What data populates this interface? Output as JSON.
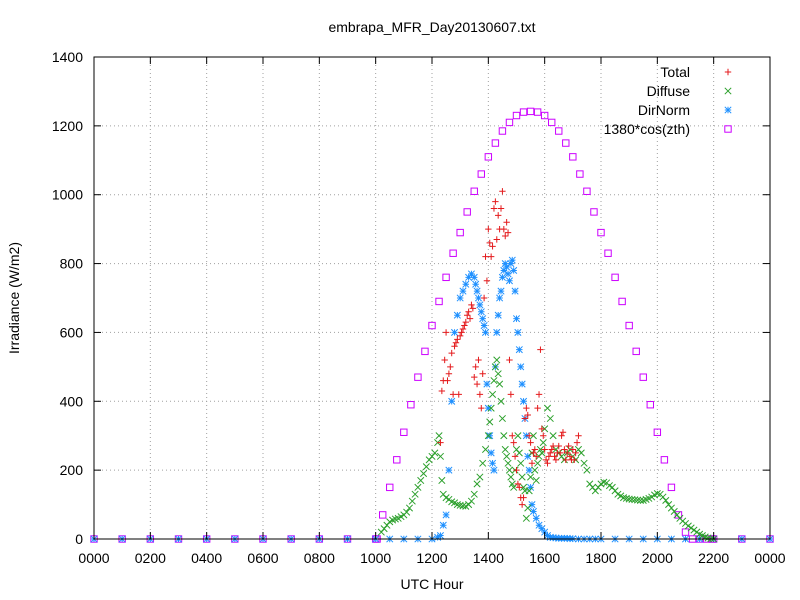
{
  "chart_data": {
    "type": "scatter",
    "title": "embrapa_MFR_Day20130607.txt",
    "xlabel": "UTC Hour",
    "ylabel": "Irradiance (W/m2)",
    "xlim": [
      0,
      24
    ],
    "ylim": [
      0,
      1400
    ],
    "x_ticks": [
      "0000",
      "0200",
      "0400",
      "0600",
      "0800",
      "1000",
      "1200",
      "1400",
      "1600",
      "1800",
      "2000",
      "2200",
      "0000"
    ],
    "y_ticks": [
      "0",
      "200",
      "400",
      "600",
      "800",
      "1000",
      "1200",
      "1400"
    ],
    "grid": true,
    "legend_position": "top-right",
    "series": [
      {
        "name": "Total",
        "marker": "plus",
        "color": "#e41a1c",
        "x": [
          12.3,
          12.35,
          12.4,
          12.45,
          12.5,
          12.55,
          12.6,
          12.65,
          12.7,
          12.75,
          12.8,
          12.85,
          12.9,
          12.95,
          13.0,
          13.05,
          13.1,
          13.15,
          13.2,
          13.25,
          13.3,
          13.35,
          13.4,
          13.45,
          13.5,
          13.55,
          13.6,
          13.65,
          13.7,
          13.75,
          13.8,
          13.85,
          13.9,
          13.95,
          14.0,
          14.05,
          14.1,
          14.15,
          14.2,
          14.25,
          14.3,
          14.35,
          14.4,
          14.45,
          14.5,
          14.55,
          14.6,
          14.65,
          14.7,
          14.75,
          14.8,
          14.85,
          14.9,
          14.95,
          15.0,
          15.05,
          15.1,
          15.15,
          15.2,
          15.25,
          15.3,
          15.35,
          15.4,
          15.45,
          15.5,
          15.55,
          15.6,
          15.65,
          15.7,
          15.75,
          15.8,
          15.85,
          15.9,
          15.95,
          16.0,
          16.05,
          16.1,
          16.15,
          16.2,
          16.25,
          16.3,
          16.35,
          16.4,
          16.45,
          16.5,
          16.55,
          16.6,
          16.65,
          16.7,
          16.75,
          16.8,
          16.85,
          16.9,
          16.95,
          17.0,
          17.05,
          17.1,
          17.15,
          17.2
        ],
        "y": [
          280,
          430,
          460,
          520,
          600,
          460,
          480,
          500,
          540,
          420,
          560,
          570,
          580,
          420,
          590,
          600,
          610,
          620,
          630,
          650,
          660,
          640,
          680,
          670,
          470,
          500,
          450,
          520,
          420,
          380,
          480,
          700,
          820,
          750,
          900,
          860,
          820,
          850,
          960,
          980,
          870,
          940,
          900,
          960,
          1010,
          900,
          880,
          920,
          890,
          520,
          420,
          300,
          280,
          240,
          200,
          160,
          150,
          120,
          100,
          120,
          350,
          380,
          360,
          300,
          280,
          220,
          250,
          260,
          240,
          380,
          420,
          550,
          320,
          300,
          260,
          230,
          220,
          240,
          250,
          260,
          270,
          240,
          230,
          250,
          270,
          250,
          300,
          310,
          260,
          230,
          250,
          270,
          240,
          230,
          260,
          230,
          250,
          280,
          300
        ]
      },
      {
        "name": "Diffuse",
        "marker": "x",
        "color": "#2ca02c",
        "x": [
          10.2,
          10.3,
          10.4,
          10.5,
          10.6,
          10.7,
          10.8,
          10.9,
          11.0,
          11.1,
          11.2,
          11.3,
          11.4,
          11.5,
          11.6,
          11.7,
          11.8,
          11.9,
          12.0,
          12.1,
          12.2,
          12.25,
          12.3,
          12.35,
          12.4,
          12.5,
          12.6,
          12.7,
          12.8,
          12.9,
          13.0,
          13.1,
          13.2,
          13.3,
          13.4,
          13.5,
          13.6,
          13.7,
          13.8,
          13.9,
          14.0,
          14.05,
          14.1,
          14.15,
          14.2,
          14.25,
          14.3,
          14.35,
          14.4,
          14.45,
          14.5,
          14.55,
          14.6,
          14.65,
          14.7,
          14.75,
          14.8,
          14.85,
          14.9,
          14.95,
          15.0,
          15.05,
          15.1,
          15.15,
          15.2,
          15.25,
          15.3,
          15.35,
          15.4,
          15.45,
          15.5,
          15.55,
          15.6,
          15.65,
          15.7,
          15.75,
          15.8,
          15.85,
          15.9,
          15.95,
          16.0,
          16.1,
          16.2,
          16.3,
          16.4,
          16.5,
          16.6,
          16.7,
          16.8,
          16.9,
          17.0,
          17.1,
          17.2,
          17.3,
          17.4,
          17.5,
          17.6,
          17.7,
          17.8,
          17.9,
          18.0,
          18.1,
          18.2,
          18.3,
          18.4,
          18.5,
          18.6,
          18.7,
          18.8,
          18.9,
          19.0,
          19.1,
          19.2,
          19.3,
          19.4,
          19.5,
          19.6,
          19.7,
          19.8,
          19.9,
          20.0,
          20.1,
          20.2,
          20.3,
          20.4,
          20.5,
          20.6,
          20.7,
          20.8,
          20.9,
          21.0,
          21.1,
          21.2,
          21.3,
          21.4,
          21.5,
          21.6,
          21.7,
          21.8,
          21.9,
          22.0
        ],
        "y": [
          20,
          30,
          40,
          50,
          55,
          58,
          60,
          65,
          70,
          78,
          90,
          110,
          130,
          150,
          170,
          190,
          210,
          230,
          240,
          250,
          280,
          300,
          240,
          170,
          130,
          120,
          115,
          108,
          105,
          100,
          98,
          96,
          95,
          100,
          110,
          130,
          160,
          180,
          220,
          260,
          300,
          340,
          380,
          420,
          460,
          500,
          520,
          480,
          450,
          400,
          350,
          300,
          260,
          240,
          220,
          200,
          180,
          160,
          150,
          200,
          260,
          300,
          250,
          220,
          180,
          150,
          140,
          60,
          90,
          140,
          180,
          250,
          300,
          200,
          170,
          220,
          240,
          260,
          250,
          280,
          320,
          380,
          350,
          300,
          260,
          250,
          240,
          230,
          250,
          260,
          240,
          230,
          260,
          250,
          220,
          200,
          160,
          150,
          140,
          150,
          160,
          165,
          163,
          155,
          150,
          140,
          130,
          125,
          120,
          118,
          116,
          115,
          114,
          113,
          112,
          112,
          115,
          118,
          122,
          128,
          132,
          130,
          122,
          112,
          100,
          90,
          80,
          70,
          60,
          52,
          45,
          38,
          32,
          26,
          20,
          14,
          10,
          6,
          3,
          1,
          0
        ]
      },
      {
        "name": "DirNorm",
        "marker": "star",
        "color": "#1e90ff",
        "x": [
          0.0,
          1.0,
          2.0,
          3.0,
          4.0,
          5.0,
          6.0,
          7.0,
          8.0,
          9.0,
          10.0,
          10.5,
          11.0,
          11.5,
          12.0,
          12.2,
          12.3,
          12.4,
          12.5,
          12.6,
          12.7,
          12.8,
          12.9,
          13.0,
          13.1,
          13.2,
          13.3,
          13.4,
          13.5,
          13.55,
          13.6,
          13.65,
          13.7,
          13.75,
          13.8,
          13.85,
          13.9,
          13.95,
          14.0,
          14.05,
          14.1,
          14.15,
          14.2,
          14.25,
          14.3,
          14.35,
          14.4,
          14.45,
          14.5,
          14.55,
          14.6,
          14.65,
          14.7,
          14.75,
          14.8,
          14.85,
          14.9,
          14.95,
          15.0,
          15.05,
          15.1,
          15.15,
          15.2,
          15.25,
          15.3,
          15.35,
          15.4,
          15.45,
          15.5,
          15.55,
          15.6,
          15.7,
          15.8,
          15.9,
          16.0,
          16.1,
          16.2,
          16.3,
          16.4,
          16.5,
          16.6,
          16.7,
          16.8,
          16.9,
          17.0,
          17.2,
          17.4,
          17.6,
          17.8,
          18.0,
          18.5,
          19.0,
          19.5,
          20.0,
          20.5,
          21.0,
          21.5,
          22.0,
          23.0,
          24.0
        ],
        "y": [
          0,
          0,
          0,
          0,
          0,
          0,
          0,
          0,
          0,
          0,
          0,
          0,
          0,
          0,
          0,
          5,
          10,
          40,
          70,
          200,
          400,
          600,
          650,
          700,
          720,
          740,
          760,
          770,
          760,
          740,
          720,
          700,
          680,
          660,
          640,
          620,
          600,
          450,
          380,
          300,
          250,
          220,
          200,
          500,
          600,
          650,
          700,
          720,
          760,
          780,
          800,
          790,
          770,
          750,
          800,
          810,
          780,
          720,
          640,
          600,
          550,
          500,
          450,
          400,
          350,
          300,
          240,
          200,
          150,
          100,
          80,
          60,
          40,
          30,
          20,
          10,
          5,
          4,
          3,
          2,
          2,
          2,
          2,
          1,
          1,
          0,
          0,
          0,
          0,
          0,
          0,
          0,
          0,
          0,
          0,
          0,
          0,
          0,
          0,
          0
        ]
      },
      {
        "name": "1380*cos(zth)",
        "marker": "square",
        "color": "#cc00ff",
        "x": [
          0.0,
          1.0,
          2.0,
          3.0,
          4.0,
          5.0,
          6.0,
          7.0,
          8.0,
          9.0,
          10.0,
          10.05,
          10.25,
          10.5,
          10.75,
          11.0,
          11.25,
          11.5,
          11.75,
          12.0,
          12.25,
          12.5,
          12.75,
          13.0,
          13.25,
          13.5,
          13.75,
          14.0,
          14.25,
          14.5,
          14.75,
          15.0,
          15.25,
          15.5,
          15.75,
          16.0,
          16.25,
          16.5,
          16.75,
          17.0,
          17.25,
          17.5,
          17.75,
          18.0,
          18.25,
          18.5,
          18.75,
          19.0,
          19.25,
          19.5,
          19.75,
          20.0,
          20.25,
          20.5,
          20.75,
          21.0,
          21.25,
          21.5,
          21.75,
          21.95,
          22.0,
          23.0,
          24.0
        ],
        "y": [
          0,
          0,
          0,
          0,
          0,
          0,
          0,
          0,
          0,
          0,
          0,
          0,
          70,
          150,
          230,
          310,
          390,
          470,
          545,
          620,
          690,
          760,
          830,
          890,
          950,
          1010,
          1060,
          1110,
          1150,
          1185,
          1210,
          1230,
          1240,
          1242,
          1240,
          1230,
          1210,
          1185,
          1150,
          1110,
          1060,
          1010,
          950,
          890,
          830,
          760,
          690,
          620,
          545,
          470,
          390,
          310,
          230,
          150,
          70,
          20,
          0,
          0,
          0,
          0,
          0,
          0,
          0
        ]
      }
    ]
  }
}
